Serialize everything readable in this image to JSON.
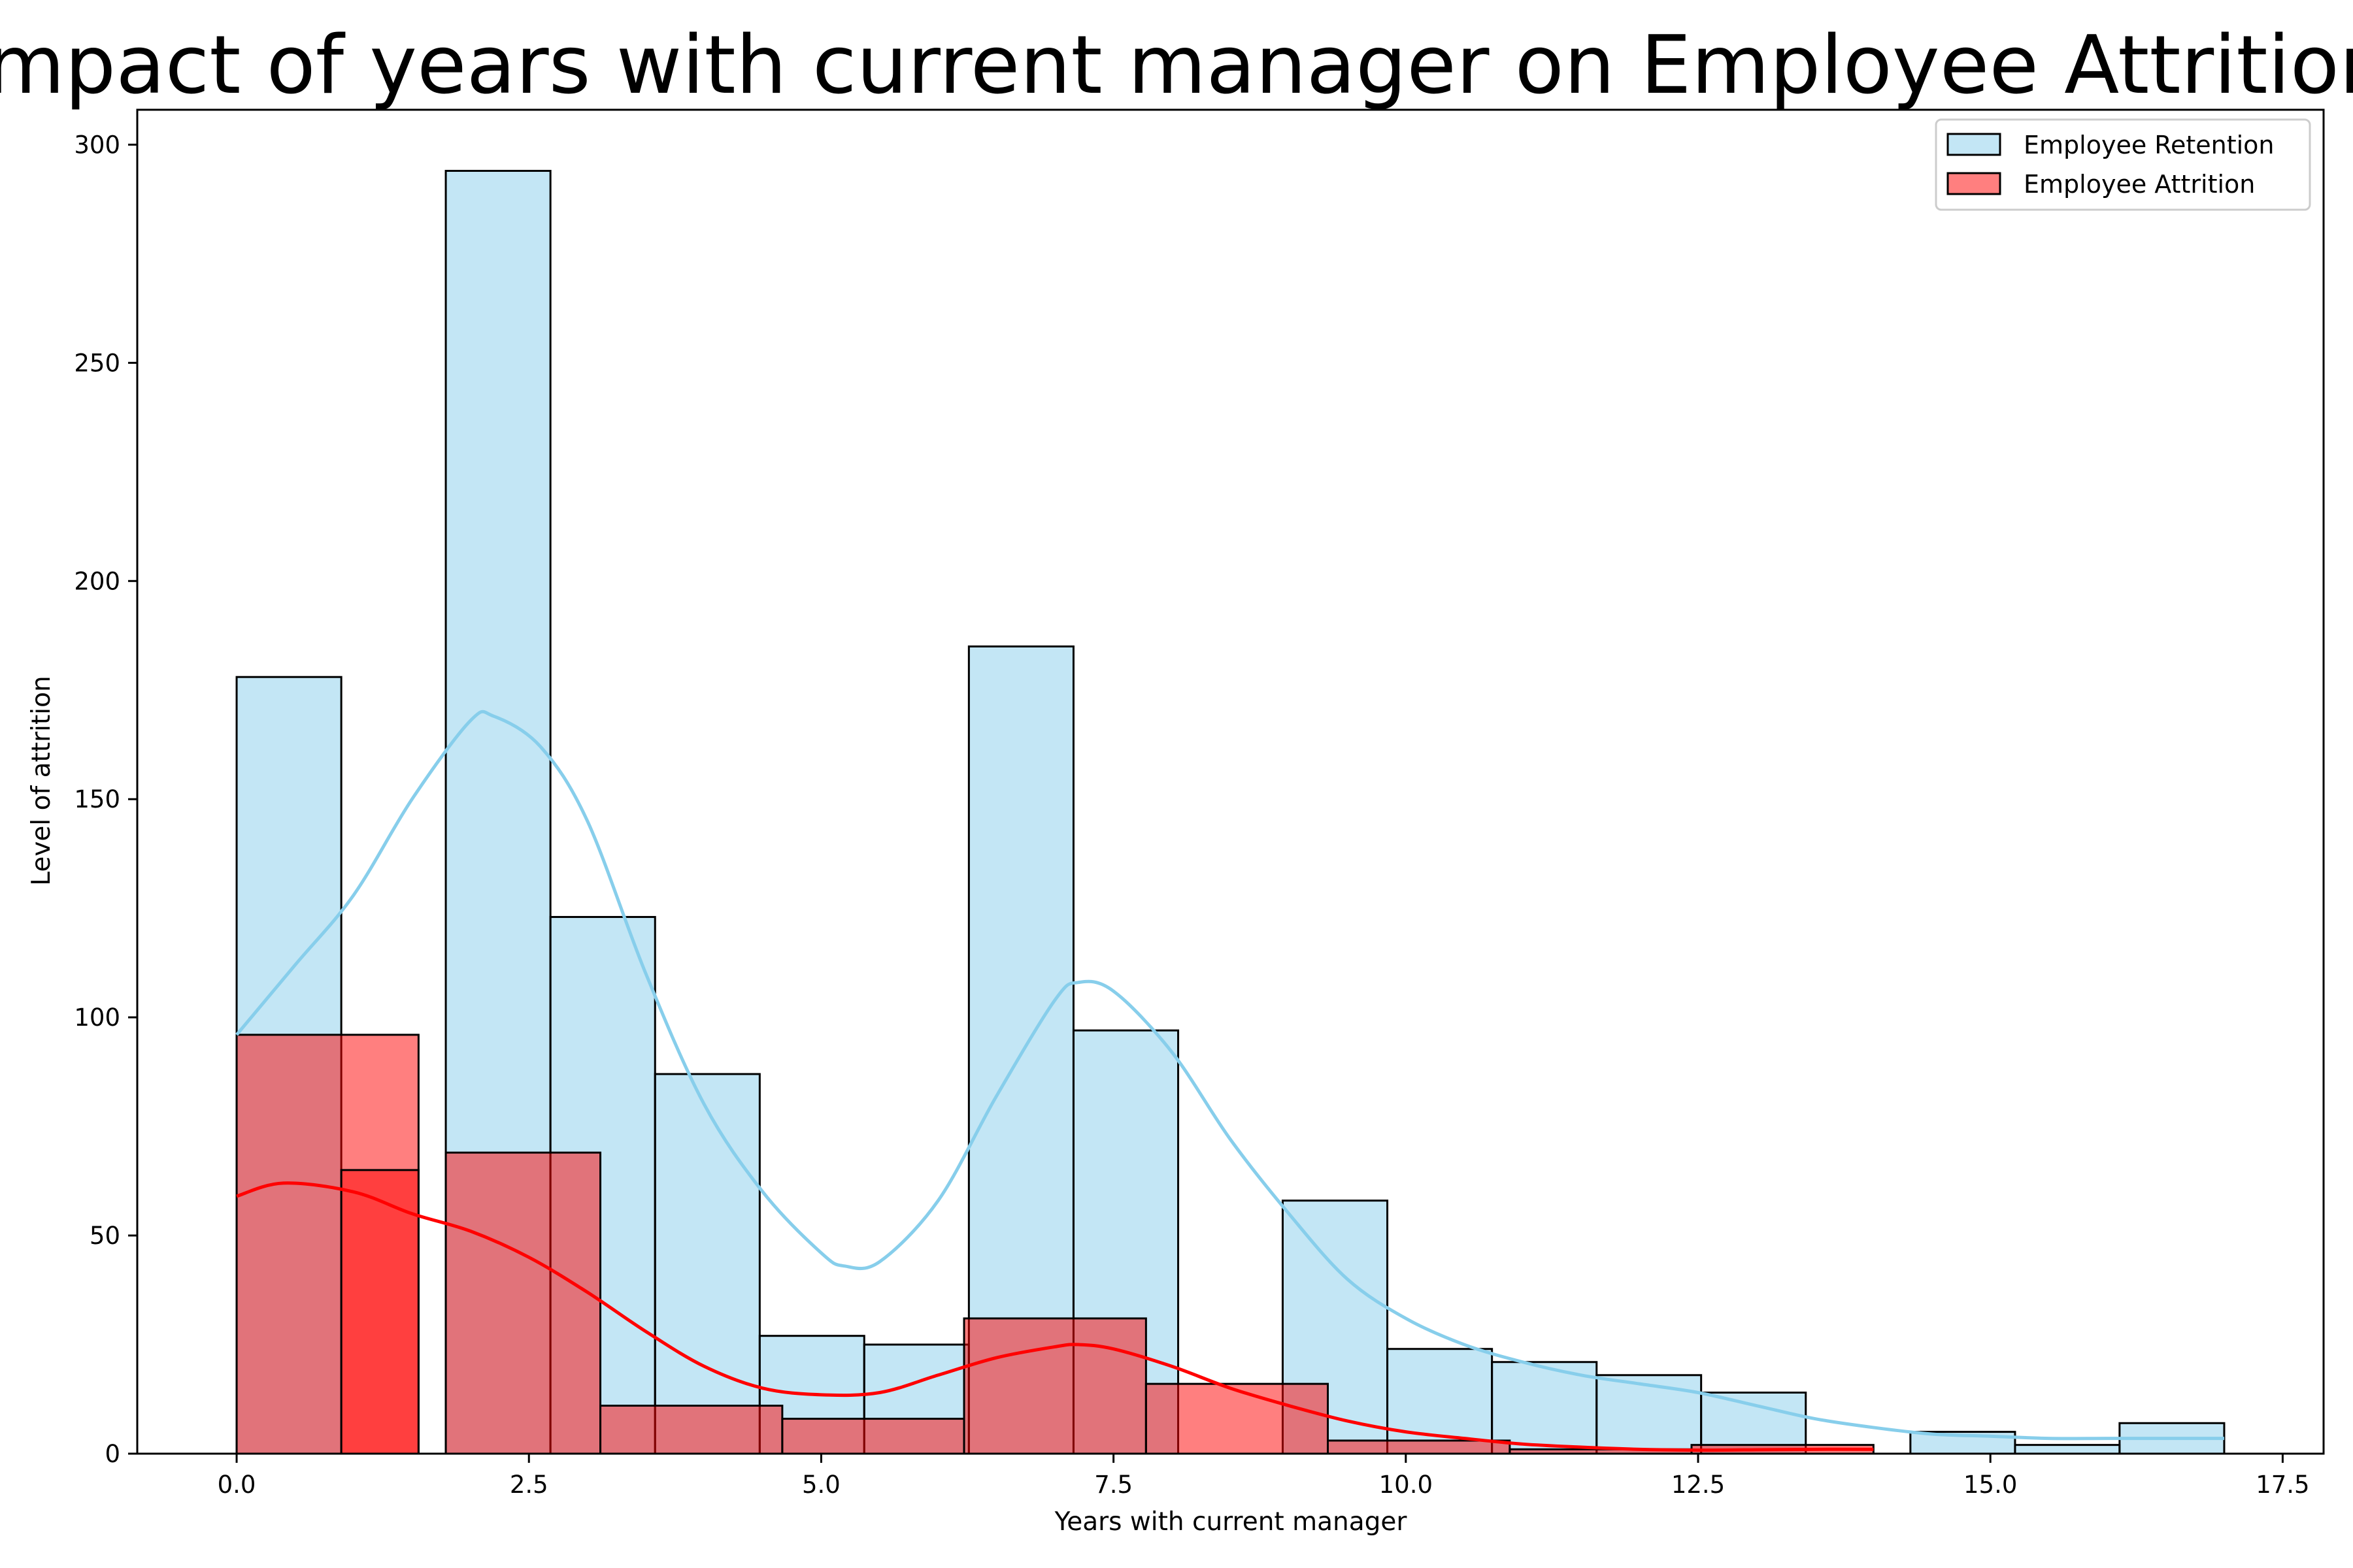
{
  "chart_data": {
    "type": "bar",
    "title": "Impact of years with current manager on Employee Attrition",
    "xlabel": "Years with current manager",
    "ylabel": "Level of attrition",
    "xlim": [
      -0.85,
      17.85
    ],
    "ylim": [
      0,
      308
    ],
    "xticks": [
      0.0,
      2.5,
      5.0,
      7.5,
      10.0,
      12.5,
      15.0,
      17.5
    ],
    "xtick_labels": [
      "0.0",
      "2.5",
      "5.0",
      "7.5",
      "10.0",
      "12.5",
      "15.0",
      "17.5"
    ],
    "yticks": [
      0,
      50,
      100,
      150,
      200,
      250,
      300
    ],
    "ytick_labels": [
      "0",
      "50",
      "100",
      "150",
      "200",
      "250",
      "300"
    ],
    "grid": false,
    "legend_position": "top-right",
    "series": [
      {
        "name": "Employee Retention",
        "color": "#87CEEB",
        "fill_opacity": 0.5,
        "kde": true,
        "bin_edges": [
          0.0,
          0.895,
          1.789,
          2.684,
          3.579,
          4.474,
          5.368,
          6.263,
          7.158,
          8.053,
          8.947,
          9.842,
          10.737,
          11.632,
          12.526,
          13.421,
          14.316,
          15.211,
          16.105,
          17.0
        ],
        "counts": [
          178,
          0,
          294,
          123,
          87,
          27,
          25,
          185,
          97,
          0,
          58,
          24,
          21,
          18,
          14,
          0,
          5,
          2,
          7
        ],
        "kde_points": [
          [
            0.0,
            96
          ],
          [
            0.5,
            112
          ],
          [
            1.0,
            128
          ],
          [
            1.5,
            150
          ],
          [
            2.0,
            168
          ],
          [
            2.2,
            169
          ],
          [
            2.6,
            162
          ],
          [
            3.0,
            145
          ],
          [
            3.5,
            110
          ],
          [
            4.0,
            80
          ],
          [
            4.5,
            60
          ],
          [
            5.0,
            46
          ],
          [
            5.2,
            43
          ],
          [
            5.5,
            44
          ],
          [
            6.0,
            58
          ],
          [
            6.5,
            82
          ],
          [
            7.0,
            104
          ],
          [
            7.2,
            108
          ],
          [
            7.5,
            106
          ],
          [
            8.0,
            92
          ],
          [
            8.5,
            72
          ],
          [
            9.0,
            55
          ],
          [
            9.5,
            40
          ],
          [
            10.0,
            31
          ],
          [
            10.5,
            25
          ],
          [
            11.0,
            21
          ],
          [
            11.5,
            18
          ],
          [
            12.0,
            16
          ],
          [
            12.5,
            14
          ],
          [
            13.0,
            11
          ],
          [
            13.5,
            8
          ],
          [
            14.0,
            6
          ],
          [
            14.5,
            4.5
          ],
          [
            15.0,
            4
          ],
          [
            15.5,
            3.5
          ],
          [
            16.0,
            3.5
          ],
          [
            16.5,
            3.5
          ],
          [
            17.0,
            3.5
          ]
        ]
      },
      {
        "name": "Employee Attrition",
        "color": "#FF0000",
        "fill_opacity": 0.5,
        "kde": true,
        "bin_edges": [
          0.0,
          0.778,
          1.556,
          2.333,
          3.111,
          3.889,
          4.667,
          5.444,
          6.222,
          7.0,
          7.778,
          8.556,
          9.333,
          10.111,
          10.889,
          11.667,
          12.444,
          13.222,
          14.0
        ],
        "counts": [
          96,
          65,
          69,
          11,
          0,
          8,
          0,
          31,
          0,
          16,
          3,
          0,
          1,
          0,
          0,
          2,
          0,
          0
        ],
        "bar_edges": [
          [
            0.0,
            1.556
          ],
          [
            0.895,
            1.556
          ],
          [
            1.789,
            3.111
          ],
          [
            3.111,
            4.667
          ],
          [
            4.667,
            6.222
          ],
          [
            6.222,
            7.778
          ],
          [
            7.778,
            9.333
          ],
          [
            9.333,
            10.889
          ],
          [
            10.889,
            12.444
          ],
          [
            12.444,
            14.0
          ]
        ],
        "bar_counts": [
          96,
          65,
          69,
          11,
          8,
          31,
          16,
          3,
          1,
          2
        ],
        "kde_points": [
          [
            0.0,
            59
          ],
          [
            0.4,
            62
          ],
          [
            1.0,
            60
          ],
          [
            1.5,
            55
          ],
          [
            2.0,
            51
          ],
          [
            2.5,
            45
          ],
          [
            3.0,
            37
          ],
          [
            3.5,
            28
          ],
          [
            4.0,
            20
          ],
          [
            4.5,
            15
          ],
          [
            5.0,
            13.5
          ],
          [
            5.5,
            14
          ],
          [
            6.0,
            18
          ],
          [
            6.5,
            22
          ],
          [
            7.0,
            24.5
          ],
          [
            7.2,
            25
          ],
          [
            7.5,
            24
          ],
          [
            8.0,
            20
          ],
          [
            8.5,
            15
          ],
          [
            9.0,
            11
          ],
          [
            9.5,
            7.5
          ],
          [
            10.0,
            5
          ],
          [
            10.5,
            3.5
          ],
          [
            11.0,
            2.2
          ],
          [
            11.5,
            1.5
          ],
          [
            12.0,
            1
          ],
          [
            12.5,
            0.8
          ],
          [
            13.0,
            0.9
          ],
          [
            13.5,
            1
          ],
          [
            14.0,
            1
          ]
        ]
      }
    ]
  }
}
